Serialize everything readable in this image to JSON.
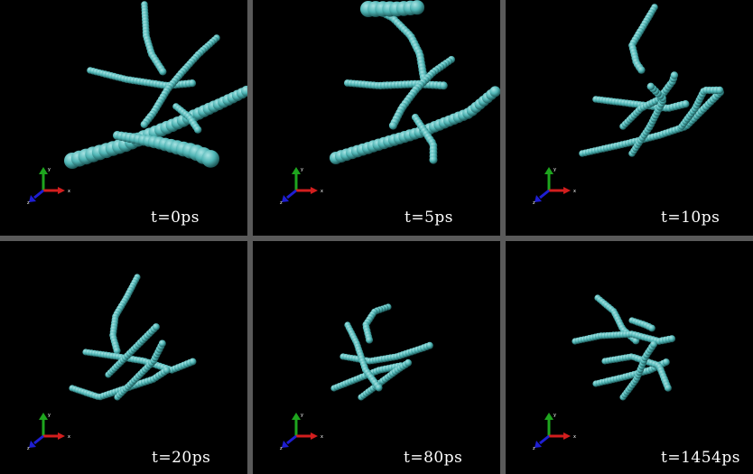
{
  "figure": {
    "panels": [
      {
        "time_label": "t=0ps"
      },
      {
        "time_label": "t=5ps"
      },
      {
        "time_label": "t=10ps"
      },
      {
        "time_label": "t=20ps"
      },
      {
        "time_label": "t=80ps"
      },
      {
        "time_label": "t=1454ps"
      }
    ],
    "axis_labels": {
      "x": "x",
      "y": "y",
      "z": "z"
    },
    "colors": {
      "bead": "#4fb5b5",
      "bead_highlight": "#a8e4e4",
      "background": "#000000",
      "separator": "#5a5a5a",
      "axis_x": "#d21e1e",
      "axis_y": "#1ea51e",
      "axis_z": "#1e1ed2"
    },
    "icons": {
      "triad": "xyz-axes-icon"
    }
  }
}
